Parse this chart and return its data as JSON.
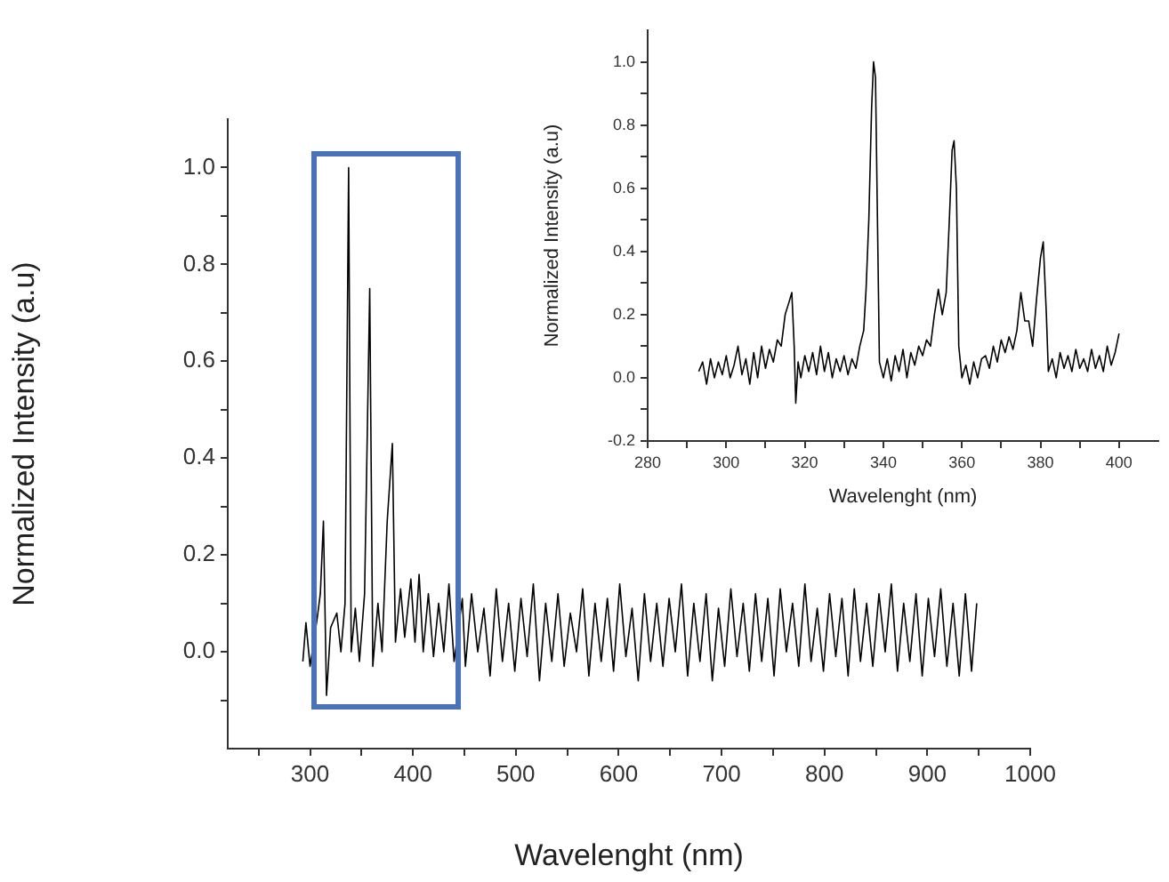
{
  "chart_data": [
    {
      "type": "line",
      "xlabel": "Wavelenght (nm)",
      "ylabel": "Normalized Intensity (a.u)",
      "xlim": [
        220,
        1000
      ],
      "ylim": [
        -0.2,
        1.1
      ],
      "xticks": [
        {
          "value": 250,
          "label": null
        },
        300,
        {
          "value": 350,
          "label": null
        },
        400,
        {
          "value": 450,
          "label": null
        },
        500,
        {
          "value": 550,
          "label": null
        },
        600,
        {
          "value": 650,
          "label": null
        },
        700,
        {
          "value": 750,
          "label": null
        },
        800,
        {
          "value": 850,
          "label": null
        },
        900,
        {
          "value": 950,
          "label": null
        },
        1000
      ],
      "yticks": [
        {
          "value": -0.1,
          "label": null
        },
        {
          "value": 0,
          "label": "0.0"
        },
        {
          "value": 0.1,
          "label": null
        },
        0.2,
        {
          "value": 0.3,
          "label": null
        },
        0.4,
        {
          "value": 0.5,
          "label": null
        },
        0.6,
        {
          "value": 0.7,
          "label": null
        },
        0.8,
        {
          "value": 0.9,
          "label": null
        },
        {
          "value": 1,
          "label": "1.0"
        }
      ],
      "grid": false,
      "legend": false,
      "marker": "none",
      "series": [
        {
          "color": "#000000",
          "x": [
            293,
            296,
            300,
            307,
            310,
            313,
            316,
            320,
            326,
            330,
            334,
            337.5,
            340,
            344,
            348,
            353,
            358,
            361,
            366,
            370,
            375,
            380,
            383,
            388,
            392,
            398,
            402,
            406,
            410,
            415,
            420,
            425,
            430,
            435,
            440,
            448,
            451,
            457,
            463,
            469,
            475,
            481,
            487,
            493,
            499,
            505,
            511,
            517,
            523,
            529,
            535,
            541,
            547,
            553,
            559,
            565,
            571,
            577,
            583,
            589,
            595,
            601,
            607,
            613,
            619,
            625,
            631,
            637,
            643,
            649,
            655,
            661,
            667,
            673,
            679,
            685,
            691,
            697,
            703,
            709,
            715,
            721,
            727,
            733,
            739,
            745,
            751,
            757,
            763,
            769,
            775,
            781,
            787,
            793,
            799,
            805,
            811,
            817,
            823,
            829,
            835,
            841,
            847,
            853,
            859,
            865,
            871,
            877,
            883,
            889,
            895,
            901,
            907,
            913,
            919,
            925,
            931,
            937,
            943,
            948
          ],
          "values": [
            -0.02,
            0.06,
            -0.03,
            0.07,
            0.12,
            0.27,
            -0.09,
            0.05,
            0.08,
            0.0,
            0.1,
            1.0,
            0.0,
            0.09,
            -0.02,
            0.12,
            0.75,
            -0.03,
            0.1,
            0.0,
            0.27,
            0.43,
            0.02,
            0.13,
            0.03,
            0.15,
            0.02,
            0.16,
            0.0,
            0.12,
            -0.01,
            0.1,
            0.0,
            0.14,
            -0.02,
            0.11,
            -0.03,
            0.12,
            0.0,
            0.09,
            -0.05,
            0.13,
            -0.02,
            0.1,
            -0.04,
            0.11,
            -0.01,
            0.14,
            -0.06,
            0.1,
            -0.02,
            0.12,
            -0.03,
            0.08,
            0.0,
            0.13,
            -0.05,
            0.1,
            -0.02,
            0.11,
            -0.04,
            0.14,
            -0.01,
            0.09,
            -0.06,
            0.12,
            -0.02,
            0.1,
            -0.03,
            0.11,
            0.0,
            0.14,
            -0.05,
            0.1,
            -0.02,
            0.12,
            -0.06,
            0.09,
            -0.03,
            0.13,
            -0.01,
            0.1,
            -0.04,
            0.12,
            -0.02,
            0.11,
            -0.05,
            0.13,
            0.0,
            0.1,
            -0.03,
            0.14,
            -0.02,
            0.09,
            -0.04,
            0.12,
            -0.01,
            0.11,
            -0.05,
            0.13,
            -0.02,
            0.1,
            -0.03,
            0.12,
            0.0,
            0.14,
            -0.04,
            0.1,
            -0.02,
            0.12,
            -0.05,
            0.11,
            -0.01,
            0.13,
            -0.03,
            0.1,
            -0.05,
            0.12,
            -0.04,
            0.1
          ]
        }
      ]
    },
    {
      "type": "line",
      "xlabel": "Wavelenght (nm)",
      "ylabel": "Normalized Intensity (a.u)",
      "xlim": [
        280,
        410
      ],
      "ylim": [
        -0.2,
        1.1
      ],
      "xticks": [
        280,
        {
          "value": 290,
          "label": null
        },
        300,
        {
          "value": 310,
          "label": null
        },
        320,
        {
          "value": 330,
          "label": null
        },
        340,
        {
          "value": 350,
          "label": null
        },
        360,
        {
          "value": 370,
          "label": null
        },
        380,
        {
          "value": 390,
          "label": null
        },
        400
      ],
      "yticks": [
        -0.2,
        {
          "value": -0.1,
          "label": null
        },
        {
          "value": 0,
          "label": "0.0"
        },
        {
          "value": 0.1,
          "label": null
        },
        0.2,
        {
          "value": 0.3,
          "label": null
        },
        0.4,
        {
          "value": 0.5,
          "label": null
        },
        0.6,
        {
          "value": 0.7,
          "label": null
        },
        0.8,
        {
          "value": 0.9,
          "label": null
        },
        {
          "value": 1,
          "label": "1.0"
        }
      ],
      "grid": false,
      "legend": false,
      "marker": "none",
      "series": [
        {
          "color": "#000000",
          "x": [
            293,
            294,
            295,
            296,
            297,
            298,
            299,
            300,
            301,
            302,
            303,
            304,
            305,
            306,
            307,
            308,
            309,
            310,
            311,
            312,
            313,
            314,
            315,
            316,
            316.7,
            317.3,
            317.7,
            318.3,
            319,
            320,
            321,
            322,
            323,
            324,
            325,
            326,
            327,
            328,
            329,
            330,
            331,
            332,
            333,
            334,
            335,
            335.6,
            336.3,
            337,
            337.5,
            338,
            338.5,
            339,
            340,
            341,
            342,
            343,
            344,
            345,
            346,
            347,
            348,
            349,
            350,
            351,
            352,
            353,
            354,
            355,
            356,
            356.8,
            357.5,
            358,
            358.6,
            359.2,
            360,
            361,
            362,
            363,
            364,
            365,
            366,
            367,
            368,
            369,
            370,
            371,
            372,
            373,
            374,
            375,
            376,
            377,
            378,
            379,
            380,
            380.7,
            381.5,
            382,
            383,
            384,
            385,
            386,
            387,
            388,
            389,
            390,
            391,
            392,
            393,
            394,
            395,
            396,
            397,
            398,
            399,
            400
          ],
          "values": [
            0.02,
            0.05,
            -0.02,
            0.06,
            0.0,
            0.05,
            0.01,
            0.07,
            0.0,
            0.04,
            0.1,
            0.01,
            0.06,
            -0.02,
            0.08,
            0.0,
            0.1,
            0.03,
            0.09,
            0.05,
            0.12,
            0.1,
            0.2,
            0.24,
            0.27,
            0.1,
            -0.08,
            0.05,
            0.0,
            0.07,
            0.02,
            0.08,
            0.01,
            0.1,
            0.02,
            0.08,
            0.0,
            0.06,
            0.02,
            0.07,
            0.01,
            0.06,
            0.03,
            0.1,
            0.15,
            0.28,
            0.5,
            0.85,
            1.0,
            0.95,
            0.5,
            0.05,
            0.0,
            0.06,
            -0.01,
            0.07,
            0.02,
            0.09,
            0.0,
            0.08,
            0.04,
            0.1,
            0.07,
            0.12,
            0.1,
            0.2,
            0.28,
            0.2,
            0.27,
            0.5,
            0.72,
            0.75,
            0.6,
            0.1,
            0.0,
            0.04,
            -0.02,
            0.05,
            0.0,
            0.06,
            0.07,
            0.03,
            0.1,
            0.05,
            0.12,
            0.08,
            0.13,
            0.09,
            0.15,
            0.27,
            0.18,
            0.18,
            0.1,
            0.25,
            0.38,
            0.43,
            0.2,
            0.02,
            0.06,
            0.0,
            0.08,
            0.03,
            0.07,
            0.02,
            0.09,
            0.03,
            0.06,
            0.02,
            0.09,
            0.03,
            0.07,
            0.02,
            0.1,
            0.04,
            0.08,
            0.14
          ]
        }
      ]
    }
  ]
}
